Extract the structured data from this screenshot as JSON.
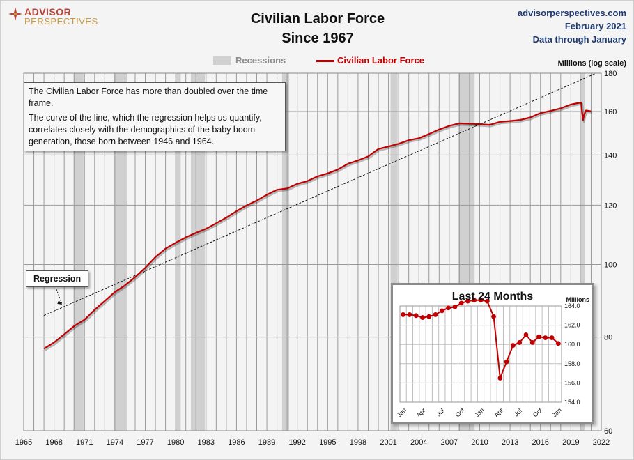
{
  "header": {
    "logo": {
      "line1": "ADVISOR",
      "line2": "PERSPECTIVES"
    },
    "title_line1": "Civilian Labor Force",
    "title_line2": "Since 1967",
    "site": "advisorperspectives.com",
    "date": "February 2021",
    "data_through": "Data through January"
  },
  "annotation": {
    "p1": "The Civilian Labor Force has more than doubled over the time frame.",
    "p2": "The curve of the line, which the regression helps us quantify, correlates closely with the demographics of the baby boom generation, those born between 1946 and 1964."
  },
  "regression_label": "Regression",
  "colors": {
    "line": "#c00000",
    "recession": "#d0d0d0",
    "grid": "#9a9a9a",
    "background": "#f4f4f4"
  },
  "chart_data": [
    {
      "type": "line",
      "title": "Civilian Labor Force Since 1967",
      "ylabel": "Millions (log scale)",
      "y_scale": "log",
      "xlim": [
        1965,
        2022
      ],
      "ylim": [
        60,
        180
      ],
      "x_ticks": [
        "1965",
        "1968",
        "1971",
        "1974",
        "1977",
        "1980",
        "1983",
        "1986",
        "1989",
        "1992",
        "1995",
        "1998",
        "2001",
        "2004",
        "2007",
        "2010",
        "2013",
        "2016",
        "2019",
        "2022"
      ],
      "y_ticks": [
        60,
        80,
        100,
        120,
        140,
        160,
        180
      ],
      "legend": {
        "placement": "top-center",
        "entries": [
          "Recessions",
          "Civilian Labor Force"
        ]
      },
      "recessions": [
        [
          1969.9,
          1970.9
        ],
        [
          1973.9,
          1975.2
        ],
        [
          1980.0,
          1980.5
        ],
        [
          1981.5,
          1982.9
        ],
        [
          1990.5,
          1991.2
        ],
        [
          2001.2,
          2001.9
        ],
        [
          2007.9,
          2009.5
        ],
        [
          2020.1,
          2020.4
        ]
      ],
      "series": [
        {
          "name": "Civilian Labor Force",
          "x": [
            1967.0,
            1968.0,
            1969.0,
            1970.0,
            1971.0,
            1972.0,
            1973.0,
            1974.0,
            1975.0,
            1976.0,
            1977.0,
            1978.0,
            1979.0,
            1980.0,
            1981.0,
            1982.0,
            1983.0,
            1984.0,
            1985.0,
            1986.0,
            1987.0,
            1988.0,
            1989.0,
            1990.0,
            1991.0,
            1992.0,
            1993.0,
            1994.0,
            1995.0,
            1996.0,
            1997.0,
            1998.0,
            1999.0,
            2000.0,
            2001.0,
            2002.0,
            2003.0,
            2004.0,
            2005.0,
            2006.0,
            2007.0,
            2008.0,
            2009.0,
            2010.0,
            2011.0,
            2012.0,
            2013.0,
            2014.0,
            2015.0,
            2016.0,
            2017.0,
            2018.0,
            2019.0,
            2020.0,
            2020.2,
            2020.3,
            2020.5,
            2021.0
          ],
          "values": [
            77.2,
            78.7,
            80.7,
            82.8,
            84.4,
            87.0,
            89.4,
            91.9,
            93.8,
            96.2,
            99.0,
            102.3,
            105.0,
            106.9,
            108.7,
            110.2,
            111.6,
            113.5,
            115.5,
            117.8,
            119.9,
            121.7,
            123.9,
            125.8,
            126.3,
            128.1,
            129.2,
            131.1,
            132.3,
            133.9,
            136.3,
            137.7,
            139.4,
            142.6,
            143.7,
            144.9,
            146.5,
            147.4,
            149.3,
            151.4,
            153.1,
            154.3,
            154.1,
            153.9,
            153.6,
            155.0,
            155.4,
            155.9,
            157.1,
            159.2,
            160.3,
            161.6,
            163.5,
            164.5,
            155.8,
            158.4,
            160.5,
            160.1
          ]
        },
        {
          "name": "Regression",
          "x": [
            1967.0,
            2021.5
          ],
          "values": [
            85.5,
            180.0
          ]
        }
      ]
    },
    {
      "type": "line",
      "title": "Last 24 Months",
      "ylabel": "Millions",
      "ylim": [
        154.0,
        164.0
      ],
      "y_ticks": [
        "164.0",
        "162.0",
        "160.0",
        "158.0",
        "156.0",
        "154.0"
      ],
      "categories": [
        "Jan",
        "Feb",
        "Mar",
        "Apr",
        "May",
        "Jun",
        "Jul",
        "Aug",
        "Sep",
        "Oct",
        "Nov",
        "Dec",
        "Jan",
        "Feb",
        "Mar",
        "Apr",
        "May",
        "Jun",
        "Jul",
        "Aug",
        "Sep",
        "Oct",
        "Nov",
        "Dec",
        "Jan"
      ],
      "tick_labels": [
        "Jan",
        "Apr",
        "Jul",
        "Oct",
        "Jan",
        "Apr",
        "Jul",
        "Oct",
        "Jan"
      ],
      "series": [
        {
          "name": "Civilian Labor Force",
          "values": [
            163.1,
            163.1,
            163.0,
            162.8,
            162.9,
            163.1,
            163.5,
            163.8,
            163.9,
            164.3,
            164.5,
            164.6,
            164.6,
            164.5,
            162.9,
            156.5,
            158.2,
            159.9,
            160.2,
            161.0,
            160.2,
            160.8,
            160.7,
            160.7,
            160.1
          ]
        }
      ]
    }
  ]
}
